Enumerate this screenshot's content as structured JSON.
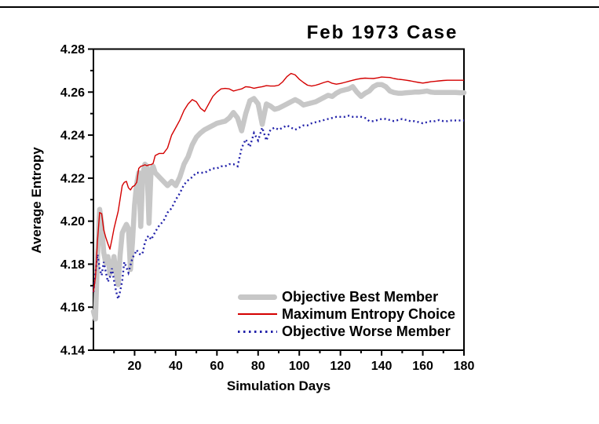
{
  "chart": {
    "title": "Feb 1973 Case"
  },
  "chart_data": {
    "type": "line",
    "title": "Feb 1973 Case",
    "xlabel": "Simulation Days",
    "ylabel": "Average Entropy",
    "xlim": [
      0,
      180
    ],
    "ylim": [
      4.14,
      4.28
    ],
    "x_ticks": [
      20,
      40,
      60,
      80,
      100,
      120,
      140,
      160,
      180
    ],
    "x_minor_ticks": [
      10,
      30,
      50,
      70,
      90,
      110,
      130,
      150,
      170
    ],
    "y_ticks": [
      4.14,
      4.16,
      4.18,
      4.2,
      4.22,
      4.24,
      4.26,
      4.28
    ],
    "y_minor_ticks": [
      4.15,
      4.17,
      4.19,
      4.21,
      4.23,
      4.25,
      4.27
    ],
    "grid": false,
    "legend_position": "inside-bottom-right",
    "frame_color": "#000000",
    "days": [
      0,
      1,
      2,
      3,
      4,
      5,
      6,
      7,
      8,
      9,
      10,
      11,
      12,
      13,
      14,
      15,
      16,
      17,
      18,
      19,
      20,
      21,
      22,
      23,
      24,
      25,
      26,
      27,
      28,
      29,
      30,
      32,
      34,
      36,
      38,
      40,
      42,
      44,
      46,
      48,
      50,
      52,
      54,
      56,
      58,
      60,
      62,
      64,
      66,
      68,
      70,
      72,
      74,
      76,
      78,
      80,
      82,
      84,
      86,
      88,
      90,
      92,
      94,
      96,
      98,
      100,
      102,
      104,
      106,
      108,
      110,
      112,
      114,
      116,
      118,
      120,
      122,
      124,
      126,
      128,
      130,
      132,
      134,
      136,
      138,
      140,
      142,
      144,
      146,
      148,
      150,
      152,
      154,
      156,
      158,
      160,
      162,
      164,
      166,
      168,
      170,
      172,
      174,
      176,
      178,
      180
    ],
    "series": [
      {
        "name": "Objective Best Member",
        "color": "#c7c7c7",
        "line_style": "solid-thick",
        "values": [
          4.158,
          4.1545,
          4.183,
          4.2055,
          4.199,
          4.1855,
          4.1805,
          4.1835,
          4.1755,
          4.1785,
          4.1835,
          4.1755,
          4.1705,
          4.1845,
          4.1945,
          4.1965,
          4.1985,
          4.1965,
          4.1775,
          4.1905,
          4.2075,
          4.2175,
          4.2225,
          4.1975,
          4.222,
          4.2265,
          4.2255,
          4.199,
          4.2235,
          4.2255,
          4.2225,
          4.2205,
          4.2185,
          4.2165,
          4.2185,
          4.2165,
          4.2205,
          4.2265,
          4.23,
          4.2355,
          4.239,
          4.241,
          4.2425,
          4.2435,
          4.2445,
          4.2455,
          4.246,
          4.2465,
          4.248,
          4.2505,
          4.248,
          4.242,
          4.25,
          4.256,
          4.257,
          4.2545,
          4.245,
          4.2545,
          4.2535,
          4.252,
          4.2525,
          4.2535,
          4.2545,
          4.2555,
          4.2565,
          4.2555,
          4.254,
          4.2545,
          4.255,
          4.2555,
          4.2565,
          4.2575,
          4.2585,
          4.258,
          4.2595,
          4.2605,
          4.261,
          4.2615,
          4.2625,
          4.26,
          4.258,
          4.2595,
          4.2605,
          4.2625,
          4.2635,
          4.2635,
          4.2625,
          4.2605,
          4.2598,
          4.2595,
          4.2595,
          4.2597,
          4.2598,
          4.26,
          4.26,
          4.2602,
          4.2605,
          4.26,
          4.2598,
          4.2598,
          4.2598,
          4.2598,
          4.2598,
          4.2598,
          4.2597,
          4.2597
        ]
      },
      {
        "name": "Maximum Entropy Choice",
        "color": "#d40000",
        "line_style": "solid-thin",
        "values": [
          4.167,
          4.174,
          4.191,
          4.204,
          4.2035,
          4.196,
          4.1925,
          4.1895,
          4.187,
          4.1915,
          4.1965,
          4.2005,
          4.2045,
          4.2105,
          4.2165,
          4.218,
          4.2185,
          4.2155,
          4.2145,
          4.216,
          4.2165,
          4.218,
          4.2245,
          4.2255,
          4.2258,
          4.2262,
          4.2258,
          4.2262,
          4.2263,
          4.2268,
          4.2305,
          4.2315,
          4.2315,
          4.234,
          4.24,
          4.2435,
          4.247,
          4.2515,
          4.2545,
          4.2565,
          4.2555,
          4.2525,
          4.251,
          4.2545,
          4.258,
          4.26,
          4.2615,
          4.2617,
          4.2615,
          4.2605,
          4.261,
          4.2615,
          4.2625,
          4.2623,
          4.2618,
          4.2622,
          4.2625,
          4.263,
          4.2628,
          4.2628,
          4.2632,
          4.2648,
          4.2672,
          4.2687,
          4.268,
          4.266,
          4.2645,
          4.2632,
          4.2628,
          4.2632,
          4.2638,
          4.2645,
          4.265,
          4.2641,
          4.2637,
          4.264,
          4.2645,
          4.265,
          4.2655,
          4.266,
          4.2663,
          4.2665,
          4.2664,
          4.2663,
          4.2666,
          4.267,
          4.2669,
          4.2668,
          4.2663,
          4.266,
          4.2658,
          4.2655,
          4.2652,
          4.2648,
          4.2645,
          4.2642,
          4.2645,
          4.2648,
          4.265,
          4.2652,
          4.2654,
          4.2655,
          4.2655,
          4.2655,
          4.2655,
          4.2655
        ]
      },
      {
        "name": "Objective Worse Member",
        "color": "#2222aa",
        "line_style": "dotted",
        "values": [
          4.167,
          4.176,
          4.1845,
          4.178,
          4.1748,
          4.181,
          4.1765,
          4.1718,
          4.174,
          4.178,
          4.1725,
          4.1675,
          4.1638,
          4.1675,
          4.1723,
          4.181,
          4.1785,
          4.176,
          4.1795,
          4.183,
          4.1845,
          4.1866,
          4.185,
          4.1843,
          4.1855,
          4.19,
          4.1925,
          4.1932,
          4.1914,
          4.193,
          4.195,
          4.198,
          4.2,
          4.204,
          4.206,
          4.21,
          4.213,
          4.217,
          4.219,
          4.2205,
          4.2225,
          4.2225,
          4.2225,
          4.2235,
          4.2245,
          4.2245,
          4.2255,
          4.2255,
          4.2265,
          4.2265,
          4.2255,
          4.234,
          4.238,
          4.2345,
          4.241,
          4.2375,
          4.2435,
          4.2375,
          4.2425,
          4.2435,
          4.2425,
          4.2435,
          4.2445,
          4.2435,
          4.2425,
          4.2435,
          4.2445,
          4.2445,
          4.2455,
          4.246,
          4.2465,
          4.247,
          4.2475,
          4.248,
          4.2485,
          4.2485,
          4.2485,
          4.249,
          4.2485,
          4.2485,
          4.2485,
          4.248,
          4.2465,
          4.2465,
          4.247,
          4.2475,
          4.2475,
          4.247,
          4.2465,
          4.247,
          4.2475,
          4.247,
          4.2465,
          4.2465,
          4.246,
          4.2455,
          4.246,
          4.2465,
          4.2465,
          4.247,
          4.2465,
          4.2465,
          4.2468,
          4.2468,
          4.2468,
          4.2468
        ]
      }
    ]
  }
}
